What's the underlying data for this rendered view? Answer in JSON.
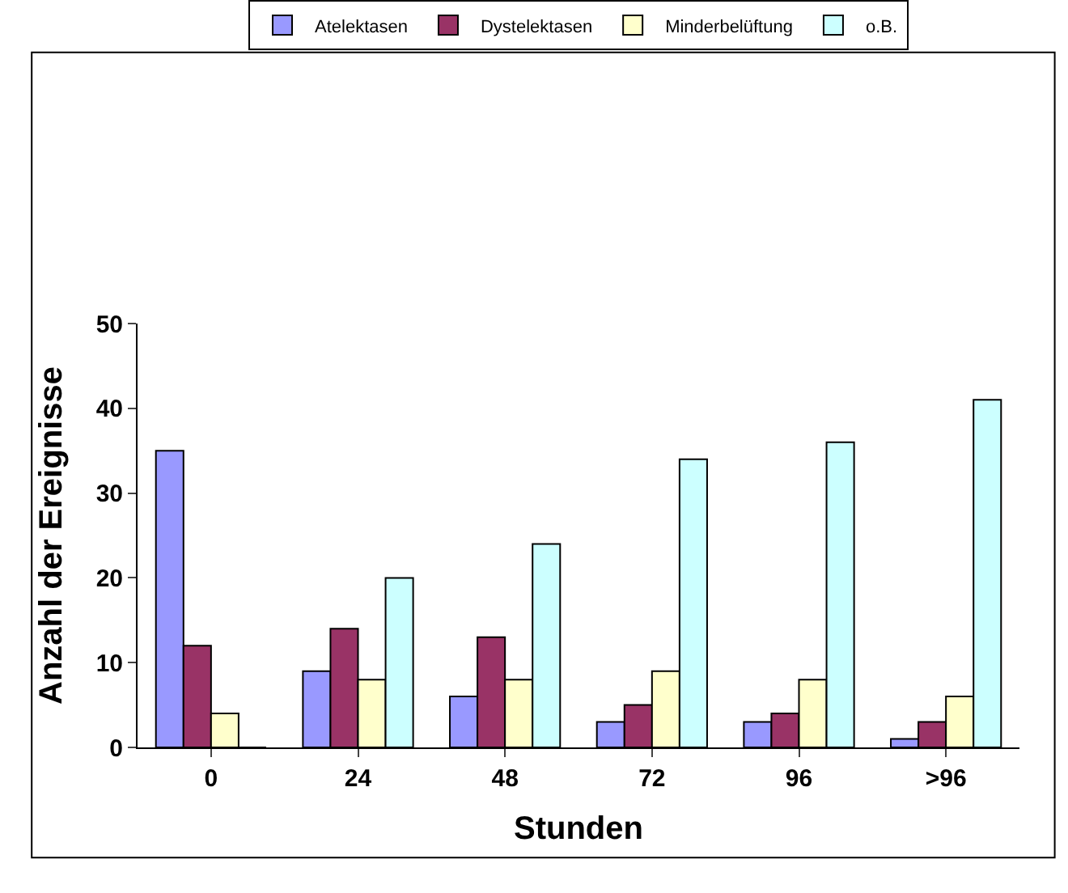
{
  "chart_data": {
    "type": "bar",
    "xlabel": "Stunden",
    "ylabel": "Anzahl der Ereignisse",
    "categories": [
      "0",
      "24",
      "48",
      "72",
      "96",
      ">96"
    ],
    "series": [
      {
        "name": "Atelektasen",
        "color": "#9999ff",
        "values": [
          35,
          9,
          6,
          3,
          3,
          1
        ]
      },
      {
        "name": "Dystelektasen",
        "color": "#993366",
        "values": [
          12,
          14,
          13,
          5,
          4,
          3
        ]
      },
      {
        "name": "Minderbelüftung",
        "color": "#ffffcc",
        "values": [
          4,
          8,
          8,
          9,
          8,
          6
        ]
      },
      {
        "name": "o.B.",
        "color": "#ccffff",
        "values": [
          0,
          20,
          24,
          34,
          36,
          41
        ]
      }
    ],
    "ylim": [
      0,
      50
    ],
    "yticks": [
      0,
      10,
      20,
      30,
      40,
      50
    ],
    "grid": false,
    "legend": "top"
  }
}
